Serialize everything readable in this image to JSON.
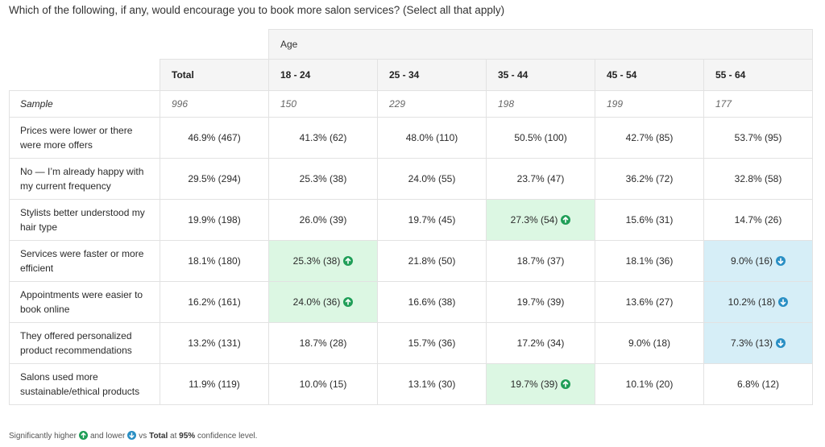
{
  "question": "Which of the following, if any, would encourage you to book more salon services? (Select all that apply)",
  "group_header": "Age",
  "columns": [
    "Total",
    "18 - 24",
    "25 - 34",
    "35 - 44",
    "45 - 54",
    "55 - 64"
  ],
  "sample": {
    "label": "Sample",
    "values": [
      "996",
      "150",
      "229",
      "198",
      "199",
      "177"
    ]
  },
  "rows": [
    {
      "label": "Prices were lower or there were more offers",
      "cells": [
        {
          "text": "46.9% (467)",
          "sig": ""
        },
        {
          "text": "41.3% (62)",
          "sig": ""
        },
        {
          "text": "48.0% (110)",
          "sig": ""
        },
        {
          "text": "50.5% (100)",
          "sig": ""
        },
        {
          "text": "42.7% (85)",
          "sig": ""
        },
        {
          "text": "53.7% (95)",
          "sig": ""
        }
      ]
    },
    {
      "label": "No — I’m already happy with my current frequency",
      "cells": [
        {
          "text": "29.5% (294)",
          "sig": ""
        },
        {
          "text": "25.3% (38)",
          "sig": ""
        },
        {
          "text": "24.0% (55)",
          "sig": ""
        },
        {
          "text": "23.7% (47)",
          "sig": ""
        },
        {
          "text": "36.2% (72)",
          "sig": ""
        },
        {
          "text": "32.8% (58)",
          "sig": ""
        }
      ]
    },
    {
      "label": "Stylists better understood my hair type",
      "cells": [
        {
          "text": "19.9% (198)",
          "sig": ""
        },
        {
          "text": "26.0% (39)",
          "sig": ""
        },
        {
          "text": "19.7% (45)",
          "sig": ""
        },
        {
          "text": "27.3% (54)",
          "sig": "up"
        },
        {
          "text": "15.6% (31)",
          "sig": ""
        },
        {
          "text": "14.7% (26)",
          "sig": ""
        }
      ]
    },
    {
      "label": "Services were faster or more efficient",
      "cells": [
        {
          "text": "18.1% (180)",
          "sig": ""
        },
        {
          "text": "25.3% (38)",
          "sig": "up"
        },
        {
          "text": "21.8% (50)",
          "sig": ""
        },
        {
          "text": "18.7% (37)",
          "sig": ""
        },
        {
          "text": "18.1% (36)",
          "sig": ""
        },
        {
          "text": "9.0% (16)",
          "sig": "down"
        }
      ]
    },
    {
      "label": "Appointments were easier to book online",
      "cells": [
        {
          "text": "16.2% (161)",
          "sig": ""
        },
        {
          "text": "24.0% (36)",
          "sig": "up"
        },
        {
          "text": "16.6% (38)",
          "sig": ""
        },
        {
          "text": "19.7% (39)",
          "sig": ""
        },
        {
          "text": "13.6% (27)",
          "sig": ""
        },
        {
          "text": "10.2% (18)",
          "sig": "down"
        }
      ]
    },
    {
      "label": "They offered personalized product recommendations",
      "cells": [
        {
          "text": "13.2% (131)",
          "sig": ""
        },
        {
          "text": "18.7% (28)",
          "sig": ""
        },
        {
          "text": "15.7% (36)",
          "sig": ""
        },
        {
          "text": "17.2% (34)",
          "sig": ""
        },
        {
          "text": "9.0% (18)",
          "sig": ""
        },
        {
          "text": "7.3% (13)",
          "sig": "down"
        }
      ]
    },
    {
      "label": "Salons used more sustainable/ethical products",
      "cells": [
        {
          "text": "11.9% (119)",
          "sig": ""
        },
        {
          "text": "10.0% (15)",
          "sig": ""
        },
        {
          "text": "13.1% (30)",
          "sig": ""
        },
        {
          "text": "19.7% (39)",
          "sig": "up"
        },
        {
          "text": "10.1% (20)",
          "sig": ""
        },
        {
          "text": "6.8% (12)",
          "sig": ""
        }
      ]
    }
  ],
  "footer": {
    "part1": "Significantly higher",
    "part2": "and lower",
    "part3": "vs",
    "total_word": "Total",
    "part4": "at",
    "confidence": "95%",
    "part5": "confidence level."
  },
  "colors": {
    "higher_bg": "#dcf7e3",
    "lower_bg": "#d6eef7",
    "higher_icon": "#1f9e57",
    "lower_icon": "#2a8fc4"
  }
}
